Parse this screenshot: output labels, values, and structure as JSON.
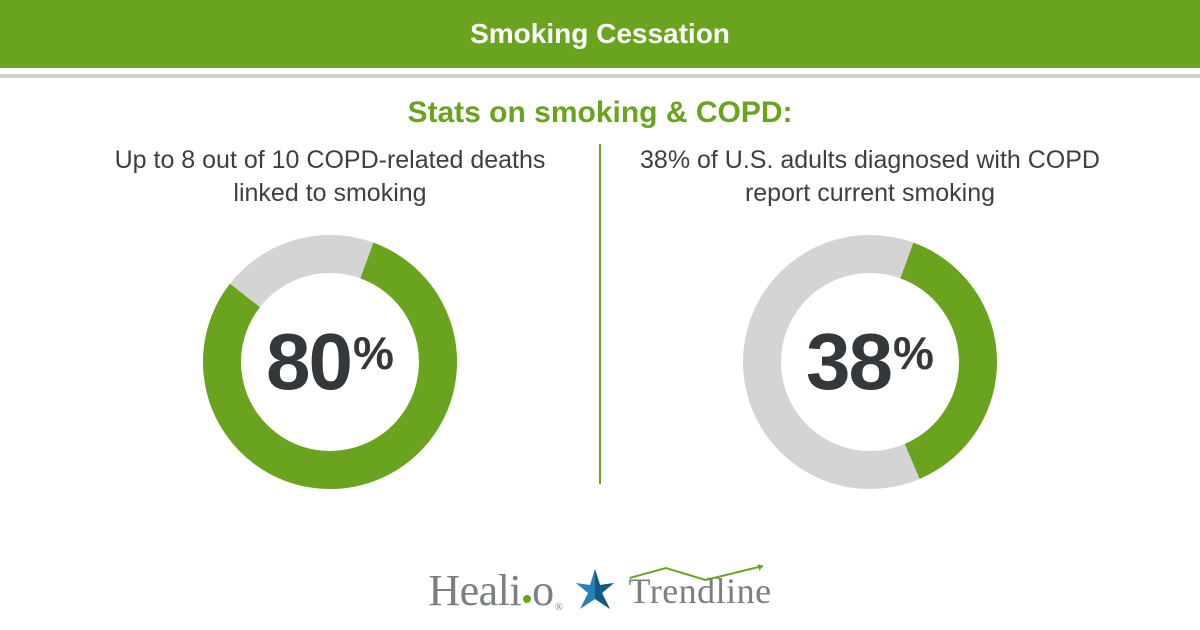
{
  "colors": {
    "brand_green": "#6aa31d",
    "dark_green": "#558a1a",
    "divider_gray": "#cfcfcf",
    "track_gray": "#d4d4d4",
    "text_dark": "#34383b",
    "logo_gray": "#7a8082",
    "star_blue": "#2b7fb3",
    "star_blue_dark": "#0f5a86",
    "background": "#ffffff"
  },
  "header": {
    "title": "Smoking Cessation"
  },
  "subtitle": "Stats on smoking & COPD:",
  "stats": {
    "left": {
      "description": "Up to 8 out of 10 COPD-related deaths linked to smoking",
      "value": 80,
      "display_number": "80",
      "display_suffix": "%",
      "donut": {
        "start_angle_deg": 20,
        "sweep_deg": 288,
        "stroke_width": 38,
        "radius": 108
      }
    },
    "right": {
      "description": "38% of U.S. adults diagnosed with COPD report current smoking",
      "value": 38,
      "display_number": "38",
      "display_suffix": "%",
      "donut": {
        "start_angle_deg": 20,
        "sweep_deg": 137,
        "stroke_width": 38,
        "radius": 108
      }
    }
  },
  "footer": {
    "healio_pre": "Heali",
    "healio_post": "o",
    "trendline": "Trendline"
  }
}
